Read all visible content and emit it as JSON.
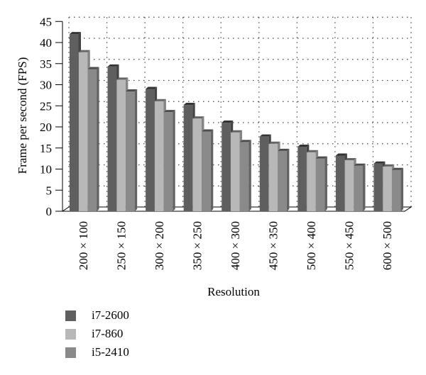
{
  "chart_data": {
    "type": "bar",
    "title": "",
    "xlabel": "Resolution",
    "ylabel": "Frame per second (FPS)",
    "ylim": [
      0,
      45
    ],
    "yticks": [
      0,
      5,
      10,
      15,
      20,
      25,
      30,
      35,
      40,
      45
    ],
    "grid": "dotted",
    "legend_position": "bottom-left",
    "categories": [
      "200 × 100",
      "250 × 150",
      "300 × 200",
      "350 × 250",
      "400 × 300",
      "450 × 350",
      "500 × 400",
      "550 × 450",
      "600 × 500"
    ],
    "series": [
      {
        "name": "i7-2600",
        "color": "#5f5f5f",
        "values": [
          42.0,
          34.3,
          29.0,
          25.2,
          21.0,
          17.7,
          15.3,
          13.2,
          11.3
        ]
      },
      {
        "name": "i7-860",
        "color": "#b8b8b8",
        "values": [
          37.7,
          31.2,
          26.1,
          22.0,
          18.7,
          16.0,
          14.0,
          12.1,
          10.6
        ]
      },
      {
        "name": "i5-2410",
        "color": "#8a8a8a",
        "values": [
          33.7,
          28.4,
          23.5,
          18.9,
          16.4,
          14.3,
          12.5,
          10.8,
          9.8
        ]
      }
    ]
  },
  "legend": {
    "items": [
      {
        "label": "i7-2600",
        "color": "#5f5f5f"
      },
      {
        "label": "i7-860",
        "color": "#b8b8b8"
      },
      {
        "label": "i5-2410",
        "color": "#8a8a8a"
      }
    ]
  }
}
